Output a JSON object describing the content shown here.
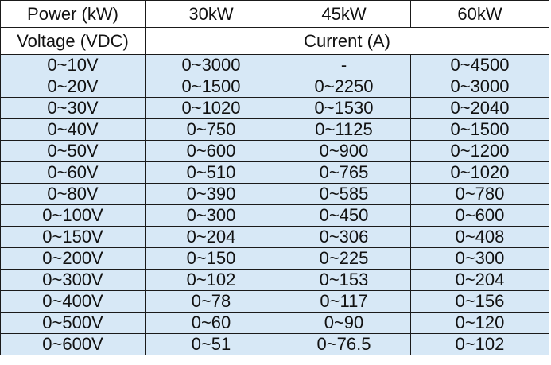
{
  "table": {
    "header": {
      "power_label": "Power (kW)",
      "power_levels": [
        "30kW",
        "45kW",
        "60kW"
      ],
      "voltage_label": "Voltage (VDC)",
      "current_label": "Current (A)"
    },
    "rows": [
      [
        "0~10V",
        "0~3000",
        "-",
        "0~4500"
      ],
      [
        "0~20V",
        "0~1500",
        "0~2250",
        "0~3000"
      ],
      [
        "0~30V",
        "0~1020",
        "0~1530",
        "0~2040"
      ],
      [
        "0~40V",
        "0~750",
        "0~1125",
        "0~1500"
      ],
      [
        "0~50V",
        "0~600",
        "0~900",
        "0~1200"
      ],
      [
        "0~60V",
        "0~510",
        "0~765",
        "0~1020"
      ],
      [
        "0~80V",
        "0~390",
        "0~585",
        "0~780"
      ],
      [
        "0~100V",
        "0~300",
        "0~450",
        "0~600"
      ],
      [
        "0~150V",
        "0~204",
        "0~306",
        "0~408"
      ],
      [
        "0~200V",
        "0~150",
        "0~225",
        "0~300"
      ],
      [
        "0~300V",
        "0~102",
        "0~153",
        "0~204"
      ],
      [
        "0~400V",
        "0~78",
        "0~117",
        "0~156"
      ],
      [
        "0~500V",
        "0~60",
        "0~90",
        "0~120"
      ],
      [
        "0~600V",
        "0~51",
        "0~76.5",
        "0~102"
      ]
    ],
    "colors": {
      "data_row_bg": "#d7e8f6",
      "header_bg": "#ffffff",
      "border": "#1a1a1a"
    }
  }
}
